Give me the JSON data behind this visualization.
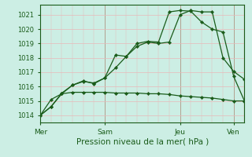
{
  "xlabel": "Pression niveau de la mer( hPa )",
  "ylim": [
    1013.5,
    1021.7
  ],
  "xlim": [
    0,
    19
  ],
  "yticks": [
    1014,
    1015,
    1016,
    1017,
    1018,
    1019,
    1020,
    1021
  ],
  "day_positions": [
    0,
    6,
    13,
    18
  ],
  "day_labels": [
    "Mer",
    "Sam",
    "Jeu",
    "Ven"
  ],
  "bg_color": "#cceee4",
  "grid_color": "#e8b8b8",
  "line_color": "#1a5c1a",
  "series1_x": [
    0,
    1,
    2,
    3,
    4,
    5,
    6,
    7,
    8,
    9,
    10,
    11,
    12,
    13,
    14,
    15,
    16,
    17,
    18,
    19
  ],
  "series1_y": [
    1014.0,
    1014.6,
    1015.55,
    1016.1,
    1016.4,
    1016.2,
    1016.6,
    1017.3,
    1018.1,
    1018.8,
    1019.1,
    1019.0,
    1019.1,
    1021.0,
    1021.3,
    1021.2,
    1021.2,
    1018.0,
    1017.05,
    1016.5
  ],
  "series2_x": [
    0,
    1,
    2,
    3,
    4,
    5,
    6,
    7,
    8,
    9,
    10,
    11,
    12,
    13,
    14,
    15,
    16,
    17,
    18,
    19
  ],
  "series2_y": [
    1014.0,
    1014.6,
    1015.5,
    1016.1,
    1016.35,
    1016.25,
    1016.6,
    1018.2,
    1018.1,
    1019.0,
    1019.15,
    1019.1,
    1021.2,
    1021.3,
    1021.25,
    1020.5,
    1020.0,
    1019.8,
    1016.7,
    1015.0
  ],
  "series3_x": [
    0,
    1,
    2,
    3,
    4,
    5,
    6,
    7,
    8,
    9,
    10,
    11,
    12,
    13,
    14,
    15,
    16,
    17,
    18,
    19
  ],
  "series3_y": [
    1014.0,
    1015.1,
    1015.5,
    1015.6,
    1015.6,
    1015.6,
    1015.6,
    1015.55,
    1015.55,
    1015.55,
    1015.5,
    1015.5,
    1015.45,
    1015.35,
    1015.3,
    1015.25,
    1015.2,
    1015.1,
    1015.0,
    1015.0
  ],
  "figsize": [
    3.2,
    2.0
  ],
  "dpi": 100
}
